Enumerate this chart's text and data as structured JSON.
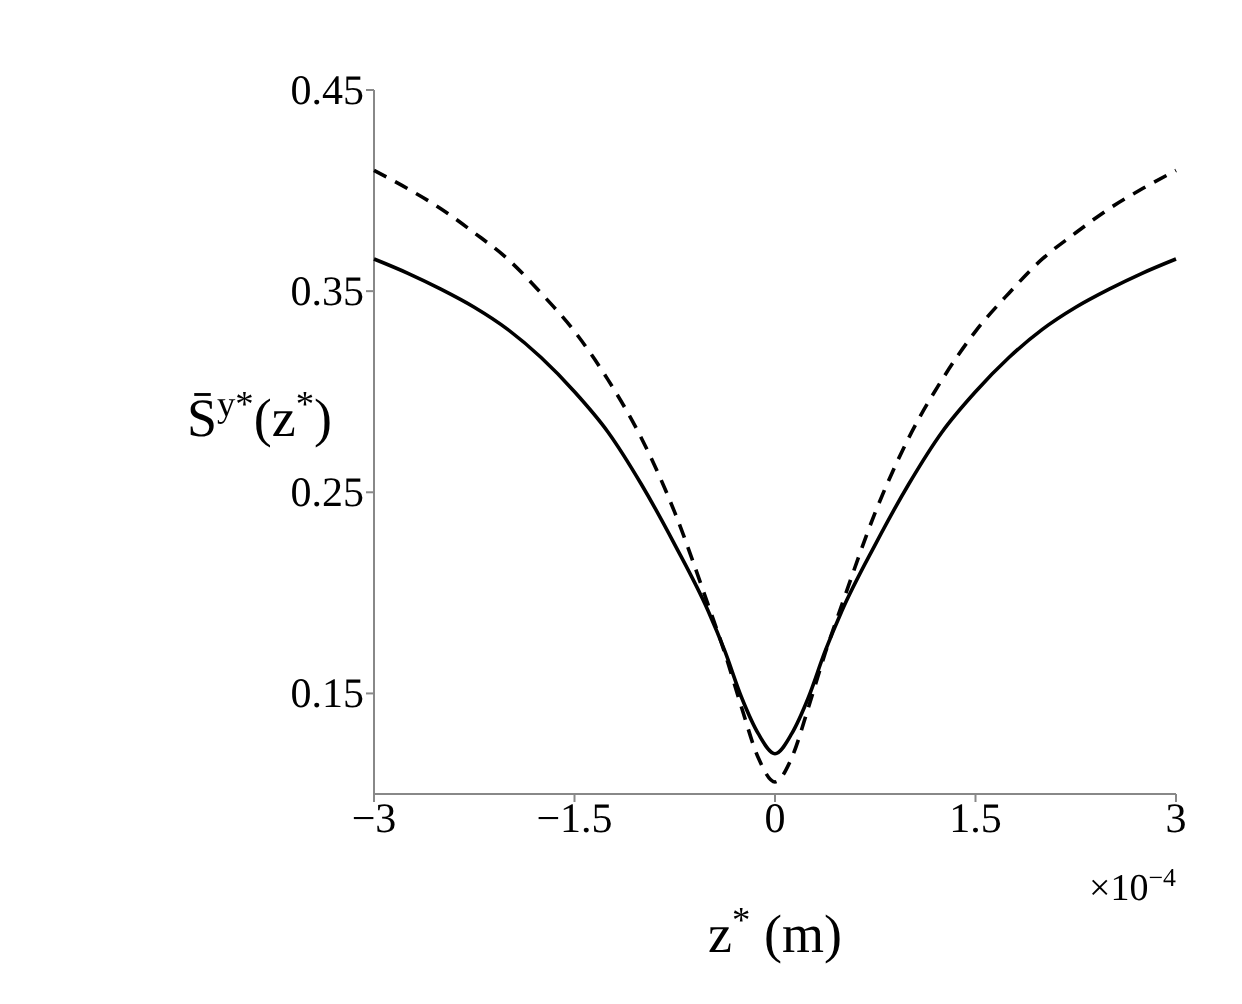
{
  "chart_data": {
    "type": "line",
    "xlabel": "z$^{*}$ (m)",
    "ylabel": "S̄$^{y*}$(z$^{*}$)",
    "annotations": [
      "×10$^{−4}$"
    ],
    "x": [
      -3,
      -2.75,
      -2.5,
      -2.25,
      -2,
      -1.75,
      -1.5,
      -1.25,
      -1,
      -0.75,
      -0.5,
      -0.375,
      -0.25,
      -0.125,
      0,
      0.125,
      0.25,
      0.375,
      0.5,
      0.75,
      1,
      1.25,
      1.5,
      1.75,
      2,
      2.25,
      2.5,
      2.75,
      3
    ],
    "series": [
      {
        "color": "#000000",
        "line_style": "solid",
        "values": [
          0.366,
          0.359,
          0.351,
          0.342,
          0.331,
          0.317,
          0.3,
          0.28,
          0.254,
          0.224,
          0.191,
          0.171,
          0.148,
          0.13,
          0.12,
          0.13,
          0.148,
          0.171,
          0.191,
          0.224,
          0.254,
          0.28,
          0.3,
          0.317,
          0.331,
          0.342,
          0.351,
          0.359,
          0.366
        ]
      },
      {
        "color": "#000000",
        "line_style": "dashed",
        "values": [
          0.41,
          0.401,
          0.391,
          0.379,
          0.366,
          0.349,
          0.33,
          0.306,
          0.277,
          0.24,
          0.194,
          0.17,
          0.143,
          0.118,
          0.106,
          0.118,
          0.143,
          0.17,
          0.194,
          0.24,
          0.277,
          0.306,
          0.33,
          0.349,
          0.366,
          0.379,
          0.391,
          0.401,
          0.41
        ]
      }
    ],
    "xlim": [
      -3,
      3
    ],
    "xticks": [
      -3,
      -1.5,
      0,
      1.5,
      3
    ],
    "ylim": [
      0.1,
      0.45
    ],
    "yticks": [
      0.15,
      0.25,
      0.35,
      0.45
    ]
  }
}
